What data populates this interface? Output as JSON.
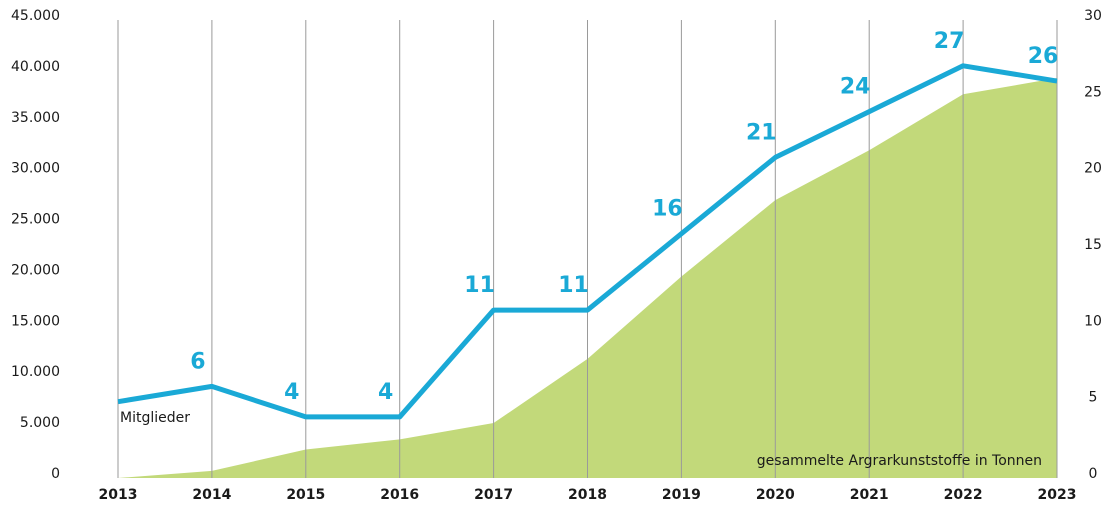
{
  "chart_data": {
    "type": "area-line",
    "categories": [
      "2013",
      "2014",
      "2015",
      "2016",
      "2017",
      "2018",
      "2019",
      "2020",
      "2021",
      "2022",
      "2023"
    ],
    "series": [
      {
        "name": "gesammelte Argrarkunststoffe in Tonnen",
        "color": "#c2d97a",
        "type": "area",
        "values": [
          0,
          700,
          2800,
          3800,
          5400,
          11700,
          19800,
          27300,
          32200,
          37700,
          39300
        ]
      },
      {
        "name": "Mitglieder",
        "color": "#1aa9d6",
        "type": "line",
        "axis": "y2",
        "values": [
          5,
          6,
          4,
          4,
          11,
          11,
          16,
          21,
          24,
          27,
          26
        ],
        "value_labels": [
          null,
          "6",
          "4",
          "4",
          "11",
          "11",
          "16",
          "21",
          "24",
          "27",
          "26"
        ]
      }
    ],
    "ylim": [
      0,
      45000
    ],
    "yticks": [
      0,
      {
        "value": 5000,
        "label": "5.000"
      },
      {
        "value": 10000,
        "label": "10.000"
      },
      {
        "value": 15000,
        "label": "15.000"
      },
      {
        "value": 20000,
        "label": "20.000"
      },
      {
        "value": 25000,
        "label": "25.000"
      },
      {
        "value": 30000,
        "label": "30.000"
      },
      {
        "value": 35000,
        "label": "35.000"
      },
      {
        "value": 40000,
        "label": "40.000"
      },
      {
        "value": 45000,
        "label": "45.000"
      }
    ],
    "y2lim": [
      0,
      30
    ],
    "y2ticks": [
      0,
      5,
      10,
      15,
      20,
      25,
      30
    ],
    "grid": true
  }
}
